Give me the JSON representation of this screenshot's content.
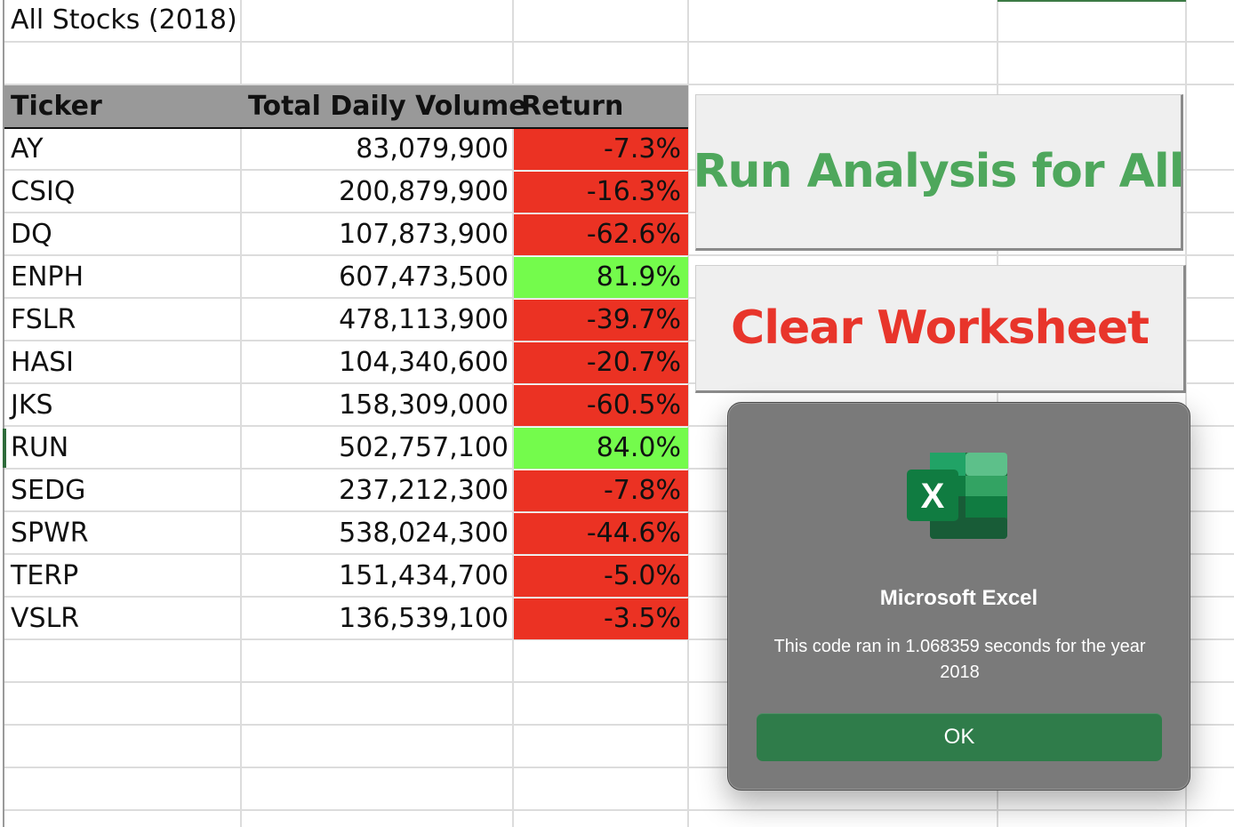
{
  "sheet": {
    "title": "All Stocks (2018)",
    "headers": {
      "ticker": "Ticker",
      "volume": "Total Daily Volume",
      "return": "Return"
    },
    "rows": [
      {
        "ticker": "AY",
        "volume": "83,079,900",
        "return": "-7.3%",
        "status": "negative"
      },
      {
        "ticker": "CSIQ",
        "volume": "200,879,900",
        "return": "-16.3%",
        "status": "negative"
      },
      {
        "ticker": "DQ",
        "volume": "107,873,900",
        "return": "-62.6%",
        "status": "negative"
      },
      {
        "ticker": "ENPH",
        "volume": "607,473,500",
        "return": "81.9%",
        "status": "positive"
      },
      {
        "ticker": "FSLR",
        "volume": "478,113,900",
        "return": "-39.7%",
        "status": "negative"
      },
      {
        "ticker": "HASI",
        "volume": "104,340,600",
        "return": "-20.7%",
        "status": "negative"
      },
      {
        "ticker": "JKS",
        "volume": "158,309,000",
        "return": "-60.5%",
        "status": "negative"
      },
      {
        "ticker": "RUN",
        "volume": "502,757,100",
        "return": "84.0%",
        "status": "positive"
      },
      {
        "ticker": "SEDG",
        "volume": "237,212,300",
        "return": "-7.8%",
        "status": "negative"
      },
      {
        "ticker": "SPWR",
        "volume": "538,024,300",
        "return": "-44.6%",
        "status": "negative"
      },
      {
        "ticker": "TERP",
        "volume": "151,434,700",
        "return": "-5.0%",
        "status": "negative"
      },
      {
        "ticker": "VSLR",
        "volume": "136,539,100",
        "return": "-3.5%",
        "status": "negative"
      }
    ],
    "colors": {
      "negative": "#eb3223",
      "positive": "#74fb4c",
      "header": "#999999"
    }
  },
  "buttons": {
    "run": {
      "label": "Run Analysis for All",
      "color": "#4ea75c"
    },
    "clear": {
      "label": "Clear Worksheet",
      "color": "#e8352b"
    }
  },
  "dialog": {
    "icon": "excel-icon",
    "icon_letter": "X",
    "title": "Microsoft Excel",
    "message": "This code ran in 1.068359 seconds for the year 2018",
    "ok_label": "OK",
    "ok_color": "#2f7c4a"
  }
}
